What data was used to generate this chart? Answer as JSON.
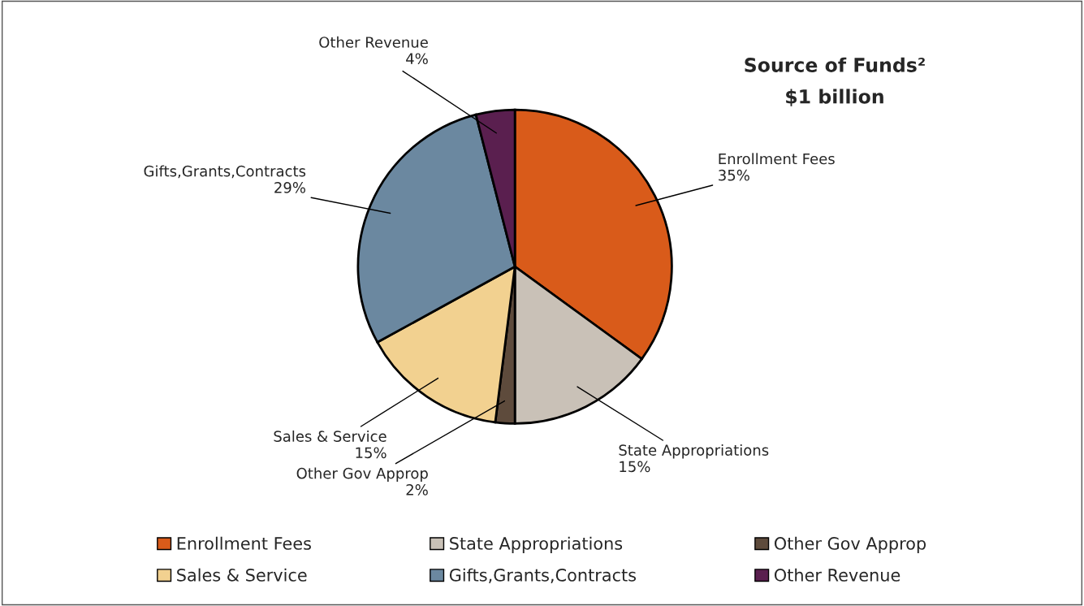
{
  "chart_data": {
    "type": "pie",
    "title": "Source of Funds²",
    "subtitle": "$1 billion",
    "categories": [
      "Enrollment Fees",
      "State Appropriations",
      "Other Gov Approp",
      "Sales & Service",
      "Gifts,Grants,Contracts",
      "Other Revenue"
    ],
    "values": [
      35,
      15,
      2,
      15,
      29,
      4
    ],
    "value_labels": [
      "35%",
      "15%",
      "2%",
      "15%",
      "29%",
      "4%"
    ],
    "colors": [
      "#d95b1a",
      "#c9c1b7",
      "#5e4b3c",
      "#f2d190",
      "#6b88a0",
      "#5a1f4f"
    ],
    "legend": "bottom"
  }
}
